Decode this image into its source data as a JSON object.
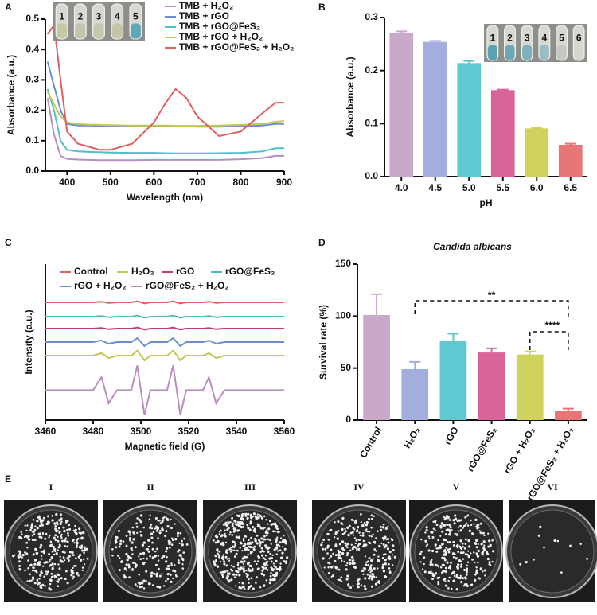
{
  "chart_data": [
    {
      "type": "line",
      "panel": "A",
      "x_label": "Wavelength (nm)",
      "y_label": "Absorbance (a.u.)",
      "legend": "upper right",
      "inset_labels": [
        "1",
        "2",
        "3",
        "4",
        "5"
      ],
      "x": [
        355,
        370,
        385,
        400,
        425,
        450,
        475,
        500,
        550,
        600,
        625,
        650,
        675,
        700,
        750,
        800,
        850,
        880,
        900
      ],
      "xlim": [
        350,
        900
      ],
      "xticks": [
        400,
        500,
        600,
        700,
        800,
        900
      ],
      "ylim": [
        0,
        0.5
      ],
      "yticks": [
        {
          "value": 0,
          "label": "0.0"
        },
        0.1,
        0.2,
        0.3,
        0.4,
        0.5
      ],
      "series": [
        {
          "name": "TMB + H₂O₂",
          "color": "#b88dbf",
          "values": [
            0.24,
            0.12,
            0.05,
            0.04,
            0.038,
            0.037,
            0.036,
            0.036,
            0.036,
            0.037,
            0.037,
            0.037,
            0.037,
            0.037,
            0.037,
            0.039,
            0.043,
            0.05,
            0.05
          ]
        },
        {
          "name": "TMB + rGO",
          "color": "#6b8fd0",
          "values": [
            0.36,
            0.28,
            0.2,
            0.155,
            0.15,
            0.15,
            0.148,
            0.148,
            0.148,
            0.148,
            0.148,
            0.147,
            0.147,
            0.146,
            0.146,
            0.148,
            0.15,
            0.155,
            0.155
          ]
        },
        {
          "name": "TMB + rGO@FeS₂",
          "color": "#4fbfc9",
          "values": [
            0.27,
            0.2,
            0.1,
            0.07,
            0.065,
            0.063,
            0.062,
            0.061,
            0.06,
            0.06,
            0.059,
            0.058,
            0.058,
            0.058,
            0.059,
            0.06,
            0.065,
            0.075,
            0.075
          ]
        },
        {
          "name": "TMB + rGO + H₂O₂",
          "color": "#c4c750",
          "values": [
            0.26,
            0.22,
            0.18,
            0.16,
            0.155,
            0.153,
            0.152,
            0.151,
            0.15,
            0.15,
            0.15,
            0.149,
            0.149,
            0.149,
            0.15,
            0.152,
            0.155,
            0.162,
            0.165
          ]
        },
        {
          "name": "TMB + rGO@FeS₂ + H₂O₂",
          "color": "#e0605f",
          "values": [
            0.45,
            0.48,
            0.3,
            0.13,
            0.09,
            0.08,
            0.07,
            0.07,
            0.09,
            0.16,
            0.22,
            0.27,
            0.24,
            0.18,
            0.115,
            0.13,
            0.19,
            0.225,
            0.225
          ]
        }
      ]
    },
    {
      "type": "bar",
      "panel": "B",
      "x_label": "pH",
      "y_label": "Absorbance (a.u.)",
      "inset_labels": [
        "1",
        "2",
        "3",
        "4",
        "5",
        "6"
      ],
      "categories": [
        "4.0",
        "4.5",
        "5.0",
        "5.5",
        "6.0",
        "6.5"
      ],
      "values": [
        0.27,
        0.254,
        0.214,
        0.163,
        0.091,
        0.06
      ],
      "errors": [
        0.004,
        0.002,
        0.004,
        0.001,
        0.001,
        0.002
      ],
      "colors": [
        "#c9a8c9",
        "#a4aede",
        "#5fc8d1",
        "#d8649a",
        "#cfd25c",
        "#e87676"
      ],
      "ylim": [
        0,
        0.3
      ],
      "yticks": [
        {
          "value": 0,
          "label": "0.0"
        },
        0.1,
        0.2,
        0.3
      ]
    },
    {
      "type": "line",
      "panel": "C",
      "x_label": "Magnetic field (G)",
      "y_label": "Intensity (a.u.)",
      "legend": "upper center",
      "x": [
        3460,
        3470,
        3480,
        3483.5,
        3486.5,
        3490,
        3496,
        3498.5,
        3501.5,
        3504,
        3511,
        3513.5,
        3516.5,
        3519,
        3526,
        3528.5,
        3531.5,
        3535,
        3545,
        3560
      ],
      "xlim": [
        3460,
        3560
      ],
      "xticks": [
        3460,
        3480,
        3500,
        3520,
        3540,
        3560
      ],
      "ylim": [
        0,
        12
      ],
      "series": [
        {
          "name": "Control",
          "color": "#e0605f",
          "values": [
            9.06,
            9.06,
            9.06,
            9.11,
            9.01,
            9.06,
            9.06,
            9.14,
            8.98,
            9.06,
            9.06,
            9.14,
            8.98,
            9.06,
            9.06,
            9.11,
            9.01,
            9.06,
            9.06,
            9.06
          ]
        },
        {
          "name": "H₂O₂",
          "color": "#c4c750",
          "values": [
            4.96,
            4.96,
            4.96,
            5.15,
            4.77,
            4.96,
            4.96,
            5.35,
            4.6,
            4.96,
            4.96,
            5.35,
            4.6,
            4.96,
            4.96,
            5.15,
            4.77,
            4.96,
            4.96,
            4.96
          ]
        },
        {
          "name": "rGO",
          "color": "#c43f7a",
          "values": [
            7.04,
            7.04,
            7.04,
            7.09,
            6.99,
            7.04,
            7.04,
            7.12,
            6.96,
            7.04,
            7.04,
            7.12,
            6.96,
            7.04,
            7.04,
            7.09,
            6.99,
            7.04,
            7.04,
            7.04
          ]
        },
        {
          "name": "rGO@FeS₂",
          "color": "#4fbfb9",
          "values": [
            7.96,
            7.96,
            7.96,
            8.01,
            7.91,
            7.96,
            7.96,
            8.04,
            7.88,
            7.96,
            7.96,
            8.04,
            7.88,
            7.96,
            7.96,
            8.01,
            7.91,
            7.96,
            7.96,
            7.96
          ]
        },
        {
          "name": "rGO + H₂O₂",
          "color": "#6b8fd0",
          "values": [
            6.0,
            6.0,
            6.0,
            6.12,
            5.88,
            6.0,
            6.0,
            6.3,
            5.7,
            6.0,
            6.0,
            6.3,
            5.7,
            6.0,
            6.0,
            6.12,
            5.88,
            6.0,
            6.0,
            6.0
          ]
        },
        {
          "name": "rGO@FeS₂ + H₂O₂",
          "color": "#b88dbf",
          "values": [
            2.3,
            2.3,
            2.3,
            3.3,
            1.3,
            2.3,
            2.3,
            4.2,
            0.4,
            2.3,
            2.3,
            4.2,
            0.4,
            2.3,
            2.3,
            3.3,
            1.3,
            2.3,
            2.3,
            2.3
          ]
        }
      ]
    },
    {
      "type": "bar",
      "panel": "D",
      "title": "Candida albicans",
      "y_label": "Survival rate (%)",
      "rotate_labels": true,
      "categories": [
        "Control",
        "H₂O₂",
        "rGO",
        "rGO@FeS₂",
        "rGO + H₂O₂",
        "rGO@FeS₂ + H₂O₂"
      ],
      "values": [
        101,
        49,
        76,
        65,
        63,
        9
      ],
      "errors": [
        20,
        7,
        7,
        4,
        3,
        2
      ],
      "colors": [
        "#c9a8c9",
        "#a4aede",
        "#5fc8d1",
        "#d8649a",
        "#cfd25c",
        "#e87676"
      ],
      "ylim": [
        0,
        150
      ],
      "yticks": [
        0,
        50,
        100,
        150
      ],
      "annotations": [
        "**",
        "****"
      ]
    },
    {
      "type": "photos",
      "panel": "E",
      "labels": [
        "I",
        "II",
        "III",
        "IV",
        "V",
        "VI"
      ]
    }
  ]
}
